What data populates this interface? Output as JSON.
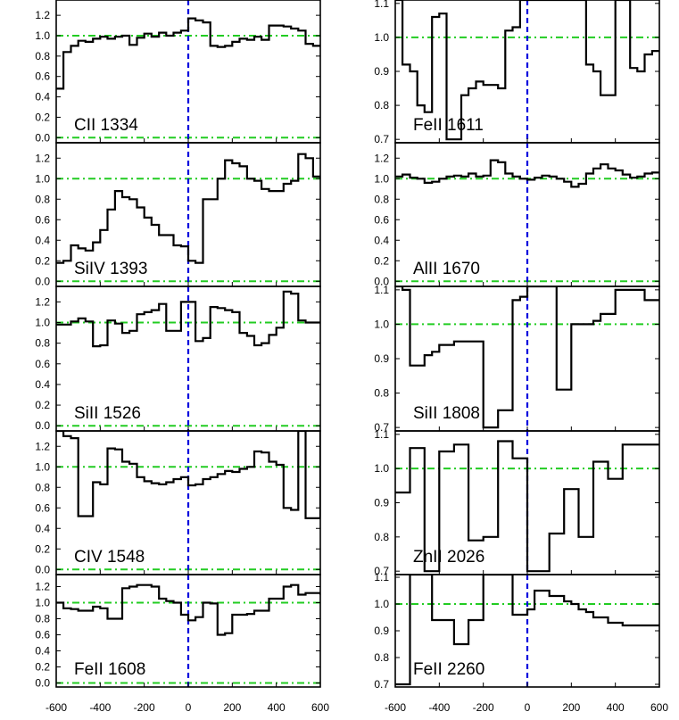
{
  "chart_data": {
    "type": "line",
    "style": "step",
    "colors": {
      "spectrum": "#000000",
      "continuum": "#22cc22",
      "zero_velocity": "#0000dd"
    },
    "x_ticks": [
      "-600",
      "-400",
      "-200",
      "0",
      "200",
      "400",
      "600"
    ],
    "xlim": [
      -600,
      600
    ],
    "panels": [
      {
        "label": "CII 1334",
        "column": "left",
        "ylim": [
          -0.05,
          1.35
        ],
        "y_ticks": [
          "0.0",
          "0.2",
          "0.4",
          "0.6",
          "0.8",
          "1.0",
          "1.2"
        ],
        "y_tick_values": [
          0,
          0.2,
          0.4,
          0.6,
          0.8,
          1.0,
          1.2
        ],
        "continuum_levels": [
          0,
          1
        ],
        "x": [
          -600,
          -567,
          -533,
          -500,
          -467,
          -433,
          -400,
          -367,
          -333,
          -300,
          -267,
          -233,
          -200,
          -167,
          -133,
          -100,
          -67,
          -33,
          0,
          33,
          67,
          100,
          133,
          167,
          200,
          233,
          267,
          300,
          333,
          367,
          400,
          433,
          467,
          500,
          533,
          567,
          600
        ],
        "values": [
          0.48,
          0.84,
          0.9,
          0.95,
          0.94,
          0.97,
          0.99,
          0.97,
          0.99,
          1.0,
          0.91,
          0.98,
          1.02,
          0.99,
          1.03,
          1.0,
          1.03,
          1.05,
          1.17,
          1.15,
          1.13,
          0.9,
          0.89,
          0.9,
          0.94,
          0.97,
          0.96,
          0.99,
          0.96,
          1.1,
          1.1,
          1.09,
          1.07,
          1.05,
          0.92,
          0.9,
          0.9
        ]
      },
      {
        "label": "SiIV 1393",
        "column": "left",
        "ylim": [
          -0.05,
          1.35
        ],
        "y_ticks": [
          "0.0",
          "0.2",
          "0.4",
          "0.6",
          "0.8",
          "1.0",
          "1.2"
        ],
        "y_tick_values": [
          0,
          0.2,
          0.4,
          0.6,
          0.8,
          1.0,
          1.2
        ],
        "continuum_levels": [
          0,
          1
        ],
        "x": [
          -600,
          -567,
          -533,
          -500,
          -467,
          -433,
          -400,
          -367,
          -333,
          -300,
          -267,
          -233,
          -200,
          -167,
          -133,
          -100,
          -67,
          -33,
          0,
          33,
          67,
          100,
          133,
          167,
          200,
          233,
          267,
          300,
          333,
          367,
          400,
          433,
          467,
          500,
          533,
          567,
          600
        ],
        "values": [
          0.18,
          0.2,
          0.35,
          0.32,
          0.3,
          0.38,
          0.5,
          0.7,
          0.88,
          0.82,
          0.8,
          0.72,
          0.62,
          0.55,
          0.45,
          0.45,
          0.35,
          0.34,
          0.2,
          0.18,
          0.8,
          0.8,
          1.0,
          1.18,
          1.15,
          1.12,
          1.0,
          0.98,
          0.9,
          0.88,
          0.88,
          0.95,
          0.98,
          1.24,
          1.2,
          1.02,
          1.0
        ]
      },
      {
        "label": "SiII 1526",
        "column": "left",
        "ylim": [
          -0.05,
          1.35
        ],
        "y_ticks": [
          "0.0",
          "0.2",
          "0.4",
          "0.6",
          "0.8",
          "1.0",
          "1.2"
        ],
        "y_tick_values": [
          0,
          0.2,
          0.4,
          0.6,
          0.8,
          1.0,
          1.2
        ],
        "continuum_levels": [
          0,
          1
        ],
        "x": [
          -600,
          -567,
          -533,
          -500,
          -467,
          -433,
          -400,
          -367,
          -333,
          -300,
          -267,
          -233,
          -200,
          -167,
          -133,
          -100,
          -67,
          -33,
          0,
          33,
          67,
          100,
          133,
          167,
          200,
          233,
          267,
          300,
          333,
          367,
          400,
          433,
          467,
          500,
          533,
          567,
          600
        ],
        "values": [
          0.98,
          0.98,
          1.01,
          1.04,
          1.01,
          0.77,
          0.78,
          1.02,
          0.99,
          0.9,
          0.92,
          1.08,
          1.1,
          1.12,
          1.18,
          0.92,
          0.92,
          1.2,
          1.2,
          0.82,
          0.85,
          1.15,
          1.14,
          1.12,
          1.1,
          0.9,
          0.87,
          0.78,
          0.8,
          0.88,
          0.95,
          1.3,
          1.28,
          1.02,
          1.0,
          1.0,
          1.0
        ]
      },
      {
        "label": "CIV 1548",
        "column": "left",
        "ylim": [
          -0.05,
          1.35
        ],
        "y_ticks": [
          "0.0",
          "0.2",
          "0.4",
          "0.6",
          "0.8",
          "1.0",
          "1.2"
        ],
        "y_tick_values": [
          0,
          0.2,
          0.4,
          0.6,
          0.8,
          1.0,
          1.2
        ],
        "continuum_levels": [
          0,
          1
        ],
        "x": [
          -600,
          -567,
          -533,
          -500,
          -467,
          -433,
          -400,
          -367,
          -333,
          -300,
          -267,
          -233,
          -200,
          -167,
          -133,
          -100,
          -67,
          -33,
          0,
          33,
          67,
          100,
          133,
          167,
          200,
          233,
          267,
          300,
          333,
          367,
          400,
          433,
          467,
          500,
          533,
          567,
          600
        ],
        "values": [
          1.35,
          1.3,
          1.28,
          0.52,
          0.52,
          0.85,
          0.83,
          1.18,
          1.17,
          1.05,
          1.03,
          0.9,
          0.86,
          0.84,
          0.83,
          0.85,
          0.88,
          0.9,
          0.82,
          0.83,
          0.88,
          0.9,
          0.93,
          0.96,
          0.95,
          0.98,
          1.0,
          1.15,
          1.14,
          1.05,
          1.02,
          0.6,
          0.58,
          1.4,
          0.5,
          0.5,
          1.4
        ]
      },
      {
        "label": "FeII 1608",
        "column": "left",
        "ylim": [
          -0.05,
          1.35
        ],
        "y_ticks": [
          "0.0",
          "0.2",
          "0.4",
          "0.6",
          "0.8",
          "1.0",
          "1.2"
        ],
        "y_tick_values": [
          0,
          0.2,
          0.4,
          0.6,
          0.8,
          1.0,
          1.2
        ],
        "continuum_levels": [
          0,
          1
        ],
        "x": [
          -600,
          -567,
          -533,
          -500,
          -467,
          -433,
          -400,
          -367,
          -333,
          -300,
          -267,
          -233,
          -200,
          -167,
          -133,
          -100,
          -67,
          -33,
          0,
          33,
          67,
          100,
          133,
          167,
          200,
          233,
          267,
          300,
          333,
          367,
          400,
          433,
          467,
          500,
          533,
          567,
          600
        ],
        "values": [
          1.0,
          0.93,
          0.92,
          0.9,
          0.9,
          0.95,
          0.93,
          0.8,
          0.8,
          1.18,
          1.2,
          1.22,
          1.22,
          1.2,
          1.05,
          1.02,
          1.0,
          0.85,
          0.78,
          0.82,
          1.0,
          0.99,
          0.6,
          0.62,
          0.85,
          0.85,
          0.86,
          0.9,
          0.9,
          1.05,
          1.05,
          1.2,
          1.22,
          1.1,
          1.12,
          1.12,
          1.1
        ]
      },
      {
        "label": "FeII 1611",
        "column": "right",
        "ylim": [
          0.69,
          1.11
        ],
        "y_ticks": [
          "0.7",
          "0.8",
          "0.9",
          "1.0",
          "1.1"
        ],
        "y_tick_values": [
          0.7,
          0.8,
          0.9,
          1.0,
          1.1
        ],
        "continuum_levels": [
          1
        ],
        "x": [
          -600,
          -567,
          -533,
          -500,
          -467,
          -433,
          -400,
          -367,
          -333,
          -300,
          -267,
          -233,
          -200,
          -167,
          -133,
          -100,
          -67,
          -33,
          0,
          33,
          67,
          100,
          133,
          167,
          200,
          233,
          267,
          300,
          333,
          367,
          400,
          433,
          467,
          500,
          533,
          567,
          600
        ],
        "values": [
          1.12,
          0.92,
          0.9,
          0.8,
          0.78,
          1.06,
          1.07,
          0.7,
          0.7,
          0.83,
          0.85,
          0.87,
          0.86,
          0.86,
          0.85,
          1.02,
          1.03,
          1.12,
          1.12,
          1.12,
          1.12,
          1.12,
          1.12,
          1.12,
          1.12,
          1.12,
          0.92,
          0.9,
          0.83,
          0.83,
          1.12,
          1.12,
          0.91,
          0.9,
          0.95,
          0.96,
          0.96
        ]
      },
      {
        "label": "AlII 1670",
        "column": "right",
        "ylim": [
          -0.05,
          1.35
        ],
        "y_ticks": [
          "0.0",
          "0.2",
          "0.4",
          "0.6",
          "0.8",
          "1.0",
          "1.2"
        ],
        "y_tick_values": [
          0,
          0.2,
          0.4,
          0.6,
          0.8,
          1.0,
          1.2
        ],
        "continuum_levels": [
          0,
          1
        ],
        "x": [
          -600,
          -567,
          -533,
          -500,
          -467,
          -433,
          -400,
          -367,
          -333,
          -300,
          -267,
          -233,
          -200,
          -167,
          -133,
          -100,
          -67,
          -33,
          0,
          33,
          67,
          100,
          133,
          167,
          200,
          233,
          267,
          300,
          333,
          367,
          400,
          433,
          467,
          500,
          533,
          567,
          600
        ],
        "values": [
          1.02,
          1.04,
          1.01,
          1.0,
          0.96,
          0.97,
          1.0,
          1.02,
          1.03,
          1.02,
          1.05,
          1.02,
          1.03,
          1.18,
          1.16,
          1.05,
          1.02,
          1.0,
          0.99,
          1.01,
          1.03,
          1.02,
          1.0,
          0.97,
          0.92,
          0.95,
          1.05,
          1.1,
          1.14,
          1.1,
          1.08,
          1.04,
          1.01,
          1.02,
          1.05,
          1.06,
          1.06
        ]
      },
      {
        "label": "SiII 1808",
        "column": "right",
        "ylim": [
          0.69,
          1.11
        ],
        "y_ticks": [
          "0.7",
          "0.8",
          "0.9",
          "1.0",
          "1.1"
        ],
        "y_tick_values": [
          0.7,
          0.8,
          0.9,
          1.0,
          1.1
        ],
        "continuum_levels": [
          1
        ],
        "x": [
          -600,
          -567,
          -533,
          -500,
          -467,
          -433,
          -400,
          -367,
          -333,
          -300,
          -267,
          -233,
          -200,
          -167,
          -133,
          -100,
          -67,
          -33,
          0,
          33,
          67,
          100,
          133,
          167,
          200,
          233,
          267,
          300,
          333,
          367,
          400,
          433,
          467,
          500,
          533,
          567,
          600
        ],
        "values": [
          1.12,
          1.1,
          0.88,
          0.88,
          0.91,
          0.92,
          0.94,
          0.94,
          0.95,
          0.95,
          0.95,
          0.95,
          0.7,
          0.7,
          0.75,
          0.75,
          1.07,
          1.08,
          1.12,
          1.12,
          1.12,
          1.12,
          0.81,
          0.81,
          1.0,
          1.0,
          1.0,
          1.01,
          1.03,
          1.03,
          1.1,
          1.1,
          1.1,
          1.1,
          1.07,
          1.07,
          1.07
        ]
      },
      {
        "label": "ZnII 2026",
        "column": "right",
        "ylim": [
          0.69,
          1.11
        ],
        "y_ticks": [
          "0.7",
          "0.8",
          "0.9",
          "1.0",
          "1.1"
        ],
        "y_tick_values": [
          0.7,
          0.8,
          0.9,
          1.0,
          1.1
        ],
        "continuum_levels": [
          1
        ],
        "x": [
          -600,
          -567,
          -533,
          -500,
          -467,
          -433,
          -400,
          -367,
          -333,
          -300,
          -267,
          -233,
          -200,
          -167,
          -133,
          -100,
          -67,
          -33,
          0,
          33,
          67,
          100,
          133,
          167,
          200,
          233,
          267,
          300,
          333,
          367,
          400,
          433,
          467,
          500,
          533,
          567,
          600
        ],
        "values": [
          0.93,
          0.93,
          1.06,
          1.06,
          0.7,
          0.7,
          1.05,
          1.05,
          1.07,
          1.07,
          0.79,
          0.79,
          0.8,
          0.8,
          1.08,
          1.08,
          1.03,
          1.03,
          0.7,
          0.7,
          0.7,
          0.81,
          0.81,
          0.94,
          0.94,
          0.8,
          0.8,
          1.02,
          1.02,
          0.97,
          0.97,
          1.07,
          1.07,
          1.07,
          1.07,
          1.07,
          1.07
        ]
      },
      {
        "label": "FeII 2260",
        "column": "right",
        "ylim": [
          0.69,
          1.11
        ],
        "y_ticks": [
          "0.7",
          "0.8",
          "0.9",
          "1.0",
          "1.1"
        ],
        "y_tick_values": [
          0.7,
          0.8,
          0.9,
          1.0,
          1.1
        ],
        "continuum_levels": [
          1
        ],
        "x": [
          -600,
          -567,
          -533,
          -500,
          -467,
          -433,
          -400,
          -367,
          -333,
          -300,
          -267,
          -233,
          -200,
          -167,
          -133,
          -100,
          -67,
          -33,
          0,
          33,
          67,
          100,
          133,
          167,
          200,
          233,
          267,
          300,
          333,
          367,
          400,
          433,
          467,
          500,
          533,
          567,
          600
        ],
        "values": [
          0.7,
          0.7,
          1.12,
          1.12,
          1.12,
          0.94,
          0.94,
          0.94,
          0.85,
          0.85,
          0.94,
          0.94,
          1.12,
          1.12,
          1.12,
          1.12,
          0.96,
          0.96,
          0.98,
          1.05,
          1.05,
          1.03,
          1.03,
          1.01,
          1.0,
          0.98,
          0.97,
          0.95,
          0.95,
          0.93,
          0.93,
          0.92,
          0.92,
          0.92,
          0.92,
          0.92,
          0.92
        ]
      }
    ]
  }
}
